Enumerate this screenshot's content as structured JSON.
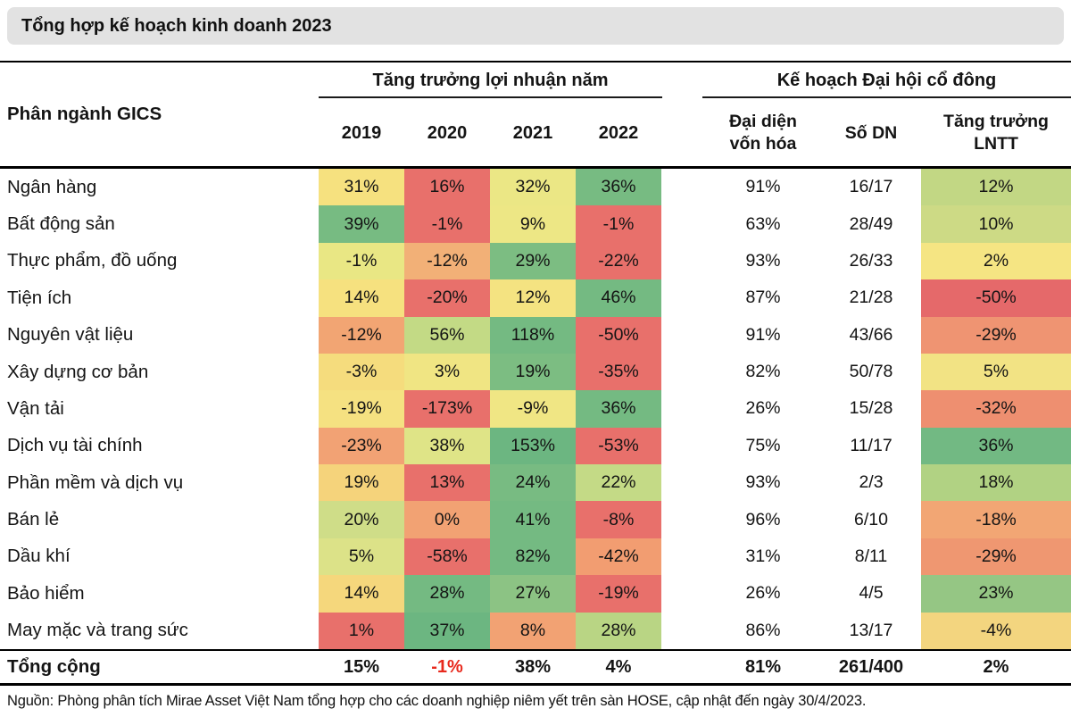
{
  "title": "Tổng hợp kế hoạch kinh doanh 2023",
  "header": {
    "col_label": "Phân ngành GICS",
    "group1": "Tăng trưởng lợi nhuận năm",
    "group2": "Kế hoạch Đại hội cổ đông",
    "years": [
      "2019",
      "2020",
      "2021",
      "2022"
    ],
    "col_rep": "Đại diện vốn hóa",
    "col_count": "Số DN",
    "col_growth": "Tăng trưởng LNTT"
  },
  "colors": {
    "title_bg": "#E2E2E2",
    "rule": "#000000",
    "negative_total_text": "#E8291D",
    "heat_red": "#E8706B",
    "heat_orange": "#F2A273",
    "heat_yellow": "#F6E17F",
    "heat_pale": "#EBE785",
    "heat_lightgreen": "#C3DA85",
    "heat_green": "#74BA82"
  },
  "table": {
    "rows": [
      {
        "label": "Ngân hàng",
        "years": [
          {
            "v": "31%",
            "c": "#F6E17F"
          },
          {
            "v": "16%",
            "c": "#E8706B"
          },
          {
            "v": "32%",
            "c": "#EBE785"
          },
          {
            "v": "36%",
            "c": "#77BB82"
          }
        ],
        "rep": "91%",
        "count": "16/17",
        "growth": {
          "v": "12%",
          "c": "#C2D784"
        }
      },
      {
        "label": "Bất động sản",
        "years": [
          {
            "v": "39%",
            "c": "#77BB82"
          },
          {
            "v": "-1%",
            "c": "#E8706B"
          },
          {
            "v": "9%",
            "c": "#EDE785"
          },
          {
            "v": "-1%",
            "c": "#E8706B"
          }
        ],
        "rep": "63%",
        "count": "28/49",
        "growth": {
          "v": "10%",
          "c": "#CDDA85"
        }
      },
      {
        "label": "Thực phẩm, đồ uống",
        "years": [
          {
            "v": "-1%",
            "c": "#E9E784"
          },
          {
            "v": "-12%",
            "c": "#F2B077"
          },
          {
            "v": "29%",
            "c": "#7CBD82"
          },
          {
            "v": "-22%",
            "c": "#E8706B"
          }
        ],
        "rep": "93%",
        "count": "26/33",
        "growth": {
          "v": "2%",
          "c": "#F5E583"
        }
      },
      {
        "label": "Tiện ích",
        "years": [
          {
            "v": "14%",
            "c": "#F6E17F"
          },
          {
            "v": "-20%",
            "c": "#E8706B"
          },
          {
            "v": "12%",
            "c": "#F4E381"
          },
          {
            "v": "46%",
            "c": "#74BA82"
          }
        ],
        "rep": "87%",
        "count": "21/28",
        "growth": {
          "v": "-50%",
          "c": "#E5696A"
        }
      },
      {
        "label": "Nguyên vật liệu",
        "years": [
          {
            "v": "-12%",
            "c": "#F2A573"
          },
          {
            "v": "56%",
            "c": "#C3DA85"
          },
          {
            "v": "118%",
            "c": "#74BA82"
          },
          {
            "v": "-50%",
            "c": "#E8706B"
          }
        ],
        "rep": "91%",
        "count": "43/66",
        "growth": {
          "v": "-29%",
          "c": "#EF9472"
        }
      },
      {
        "label": "Xây dựng cơ bản",
        "years": [
          {
            "v": "-3%",
            "c": "#F5DC7D"
          },
          {
            "v": "3%",
            "c": "#F0E583"
          },
          {
            "v": "19%",
            "c": "#7CBD82"
          },
          {
            "v": "-35%",
            "c": "#E8706B"
          }
        ],
        "rep": "82%",
        "count": "50/78",
        "growth": {
          "v": "5%",
          "c": "#F2E384"
        }
      },
      {
        "label": "Vận tải",
        "years": [
          {
            "v": "-19%",
            "c": "#F5E181"
          },
          {
            "v": "-173%",
            "c": "#E8706B"
          },
          {
            "v": "-9%",
            "c": "#F0E684"
          },
          {
            "v": "36%",
            "c": "#74BA82"
          }
        ],
        "rep": "26%",
        "count": "15/28",
        "growth": {
          "v": "-32%",
          "c": "#EE8F70"
        }
      },
      {
        "label": "Dịch vụ tài chính",
        "years": [
          {
            "v": "-23%",
            "c": "#F2A274"
          },
          {
            "v": "38%",
            "c": "#DFE487"
          },
          {
            "v": "153%",
            "c": "#6CB681"
          },
          {
            "v": "-53%",
            "c": "#E8706B"
          }
        ],
        "rep": "75%",
        "count": "11/17",
        "growth": {
          "v": "36%",
          "c": "#72B983"
        }
      },
      {
        "label": "Phần mềm và dịch vụ",
        "years": [
          {
            "v": "19%",
            "c": "#F5D37B"
          },
          {
            "v": "13%",
            "c": "#E8706B"
          },
          {
            "v": "24%",
            "c": "#78BB82"
          },
          {
            "v": "22%",
            "c": "#C4DA86"
          }
        ],
        "rep": "93%",
        "count": "2/3",
        "growth": {
          "v": "18%",
          "c": "#B1D283"
        }
      },
      {
        "label": "Bán lẻ",
        "years": [
          {
            "v": "20%",
            "c": "#CFDD88"
          },
          {
            "v": "0%",
            "c": "#F2A273"
          },
          {
            "v": "41%",
            "c": "#74BA82"
          },
          {
            "v": "-8%",
            "c": "#E8706B"
          }
        ],
        "rep": "96%",
        "count": "6/10",
        "growth": {
          "v": "-18%",
          "c": "#F2A674"
        }
      },
      {
        "label": "Dầu khí",
        "years": [
          {
            "v": "5%",
            "c": "#DCE288"
          },
          {
            "v": "-58%",
            "c": "#E8706B"
          },
          {
            "v": "82%",
            "c": "#74BA82"
          },
          {
            "v": "-42%",
            "c": "#F29D71"
          }
        ],
        "rep": "31%",
        "count": "8/11",
        "growth": {
          "v": "-29%",
          "c": "#EF9771"
        }
      },
      {
        "label": "Bảo hiểm",
        "years": [
          {
            "v": "14%",
            "c": "#F5D77C"
          },
          {
            "v": "28%",
            "c": "#74BA82"
          },
          {
            "v": "27%",
            "c": "#8CC384"
          },
          {
            "v": "-19%",
            "c": "#E8706B"
          }
        ],
        "rep": "26%",
        "count": "4/5",
        "growth": {
          "v": "23%",
          "c": "#95C684"
        }
      },
      {
        "label": "May mặc và trang sức",
        "years": [
          {
            "v": "1%",
            "c": "#E8706B"
          },
          {
            "v": "37%",
            "c": "#6CB681"
          },
          {
            "v": "8%",
            "c": "#F2A273"
          },
          {
            "v": "28%",
            "c": "#B9D584"
          }
        ],
        "rep": "86%",
        "count": "13/17",
        "growth": {
          "v": "-4%",
          "c": "#F3D57F"
        }
      }
    ],
    "total": {
      "label": "Tổng cộng",
      "years": [
        {
          "v": "15%",
          "style": ""
        },
        {
          "v": "-1%",
          "style": "color:#E8291D"
        },
        {
          "v": "38%",
          "style": ""
        },
        {
          "v": "4%",
          "style": ""
        }
      ],
      "rep": "81%",
      "count": "261/400",
      "growth": "2%"
    }
  },
  "footer": "Nguồn: Phòng phân tích Mirae Asset Việt Nam tổng hợp cho các doanh nghiệp niêm yết trên sàn HOSE, cập nhật đến ngày 30/4/2023.",
  "chart_data": {
    "type": "table",
    "title": "Tổng hợp kế hoạch kinh doanh 2023",
    "column_groups": [
      {
        "label": "Tăng trưởng lợi nhuận năm",
        "columns": [
          "2019",
          "2020",
          "2021",
          "2022"
        ]
      },
      {
        "label": "Kế hoạch Đại hội cổ đông",
        "columns": [
          "Đại diện vốn hóa",
          "Số DN",
          "Tăng trưởng LNTT"
        ]
      }
    ],
    "columns": [
      "Phân ngành GICS",
      "2019",
      "2020",
      "2021",
      "2022",
      "Đại diện vốn hóa",
      "Số DN",
      "Tăng trưởng LNTT"
    ],
    "rows": [
      [
        "Ngân hàng",
        "31%",
        "16%",
        "32%",
        "36%",
        "91%",
        "16/17",
        "12%"
      ],
      [
        "Bất động sản",
        "39%",
        "-1%",
        "9%",
        "-1%",
        "63%",
        "28/49",
        "10%"
      ],
      [
        "Thực phẩm, đồ uống",
        "-1%",
        "-12%",
        "29%",
        "-22%",
        "93%",
        "26/33",
        "2%"
      ],
      [
        "Tiện ích",
        "14%",
        "-20%",
        "12%",
        "46%",
        "87%",
        "21/28",
        "-50%"
      ],
      [
        "Nguyên vật liệu",
        "-12%",
        "56%",
        "118%",
        "-50%",
        "91%",
        "43/66",
        "-29%"
      ],
      [
        "Xây dựng cơ bản",
        "-3%",
        "3%",
        "19%",
        "-35%",
        "82%",
        "50/78",
        "5%"
      ],
      [
        "Vận tải",
        "-19%",
        "-173%",
        "-9%",
        "36%",
        "26%",
        "15/28",
        "-32%"
      ],
      [
        "Dịch vụ tài chính",
        "-23%",
        "38%",
        "153%",
        "-53%",
        "75%",
        "11/17",
        "36%"
      ],
      [
        "Phần mềm và dịch vụ",
        "19%",
        "13%",
        "24%",
        "22%",
        "93%",
        "2/3",
        "18%"
      ],
      [
        "Bán lẻ",
        "20%",
        "0%",
        "41%",
        "-8%",
        "96%",
        "6/10",
        "-18%"
      ],
      [
        "Dầu khí",
        "5%",
        "-58%",
        "82%",
        "-42%",
        "31%",
        "8/11",
        "-29%"
      ],
      [
        "Bảo hiểm",
        "14%",
        "28%",
        "27%",
        "-19%",
        "26%",
        "4/5",
        "23%"
      ],
      [
        "May mặc và trang sức",
        "1%",
        "37%",
        "8%",
        "28%",
        "86%",
        "13/17",
        "-4%"
      ]
    ],
    "total_row": [
      "Tổng cộng",
      "15%",
      "-1%",
      "38%",
      "4%",
      "81%",
      "261/400",
      "2%"
    ],
    "note": "Nguồn: Phòng phân tích Mirae Asset Việt Nam tổng hợp cho các doanh nghiệp niêm yết trên sàn HOSE, cập nhật đến ngày 30/4/2023.",
    "heatmap": "red-yellow-green conditional formatting per cell"
  }
}
